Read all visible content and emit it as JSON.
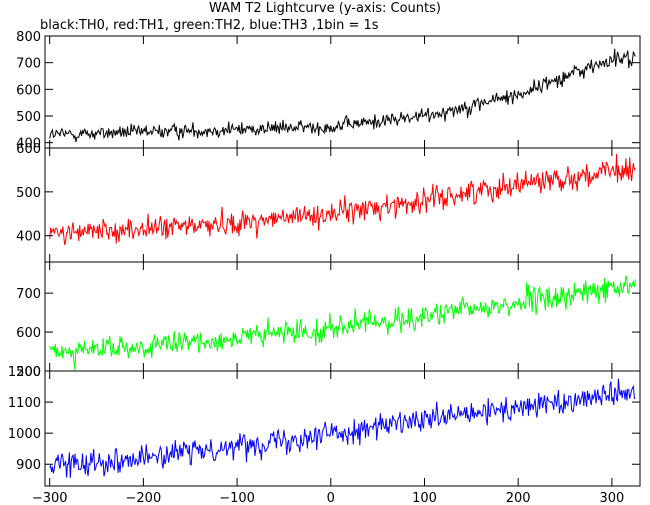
{
  "header": {
    "title": "WAM T2 Lightcurve (y-axis: Counts)",
    "subtitle": "black:TH0, red:TH1, green:TH2, blue:TH3 ,1bin = 1s"
  },
  "chart_data": [
    {
      "type": "line",
      "series": [
        {
          "name": "TH0",
          "color": "#000000"
        }
      ],
      "x_trend": [
        -300,
        -200,
        -100,
        0,
        100,
        200,
        250,
        300,
        325
      ],
      "y_trend": [
        430,
        440,
        450,
        460,
        500,
        580,
        650,
        710,
        720
      ],
      "xlim": [
        -305,
        330
      ],
      "ylim": [
        380,
        800
      ],
      "yticks": [
        400,
        500,
        600,
        700,
        800
      ],
      "xlabel": "",
      "ylabel": ""
    },
    {
      "type": "line",
      "series": [
        {
          "name": "TH1",
          "color": "#ff0000"
        }
      ],
      "x_trend": [
        -300,
        -200,
        -100,
        0,
        100,
        200,
        325
      ],
      "y_trend": [
        405,
        415,
        430,
        450,
        480,
        520,
        550
      ],
      "xlim": [
        -305,
        330
      ],
      "ylim": [
        340,
        600
      ],
      "yticks": [
        400,
        500,
        600
      ],
      "xlabel": "",
      "ylabel": ""
    },
    {
      "type": "line",
      "series": [
        {
          "name": "TH2",
          "color": "#00ff00"
        }
      ],
      "x_trend": [
        -300,
        -200,
        -100,
        0,
        100,
        200,
        325
      ],
      "y_trend": [
        550,
        560,
        585,
        610,
        640,
        675,
        720
      ],
      "xlim": [
        -305,
        330
      ],
      "ylim": [
        500,
        780
      ],
      "yticks": [
        500,
        600,
        700
      ],
      "xlabel": "",
      "ylabel": ""
    },
    {
      "type": "line",
      "series": [
        {
          "name": "TH3",
          "color": "#0000ff"
        }
      ],
      "x_trend": [
        -300,
        -200,
        -100,
        0,
        100,
        200,
        325
      ],
      "y_trend": [
        900,
        920,
        960,
        1000,
        1040,
        1080,
        1140
      ],
      "xlim": [
        -305,
        330
      ],
      "ylim": [
        830,
        1200
      ],
      "yticks": [
        900,
        1000,
        1100,
        1200
      ],
      "xticks": [
        -300,
        -200,
        -100,
        0,
        100,
        200,
        300
      ],
      "xlabel": "",
      "ylabel": ""
    }
  ]
}
